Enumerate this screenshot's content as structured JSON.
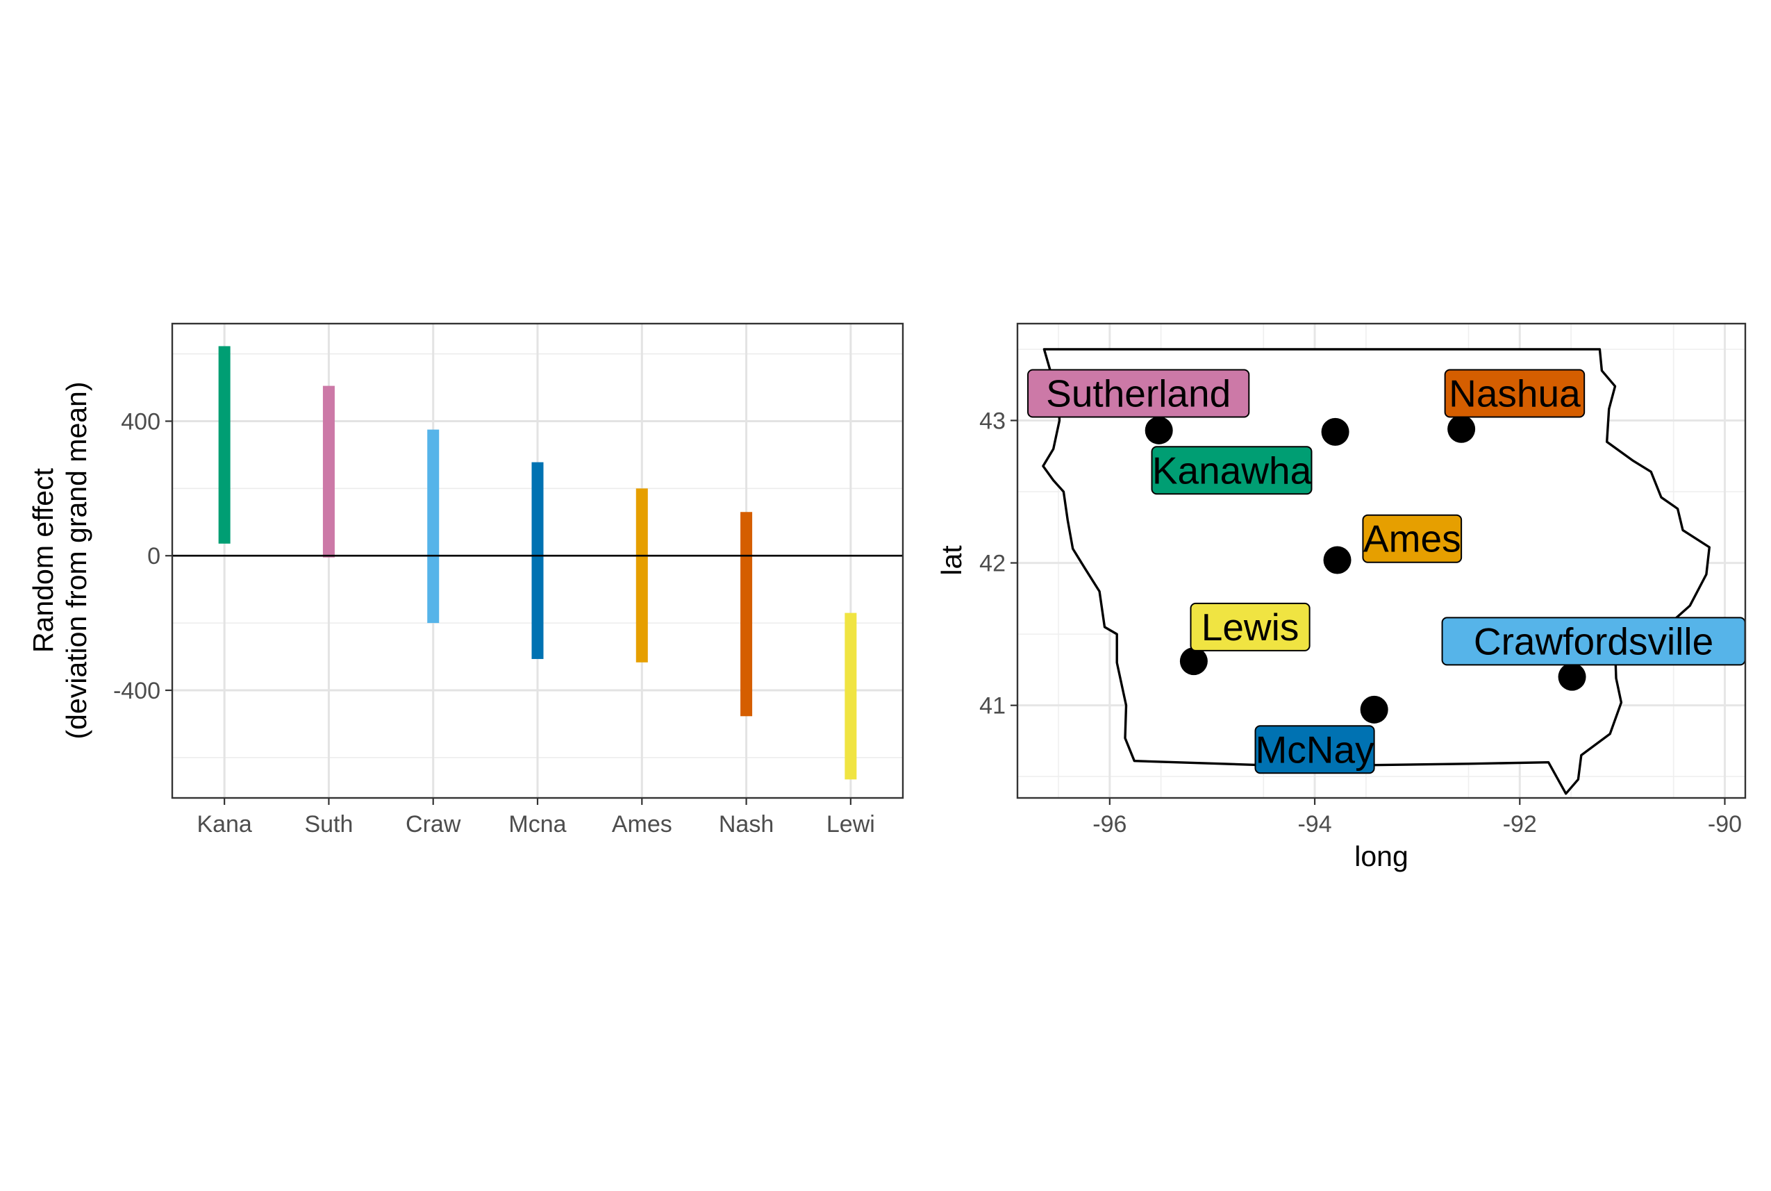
{
  "chart_data": [
    {
      "type": "bar",
      "subtype": "range",
      "categories": [
        "Kana",
        "Suth",
        "Craw",
        "Mcna",
        "Ames",
        "Nash",
        "Lewi"
      ],
      "series": [
        {
          "values": [
            [
              36,
              623
            ],
            [
              -5,
              505
            ],
            [
              -200,
              375
            ],
            [
              -307,
              278
            ],
            [
              -317,
              200
            ],
            [
              -477,
              130
            ],
            [
              -665,
              -170
            ]
          ]
        }
      ],
      "colors": [
        "#009E73",
        "#CC79A7",
        "#56B4E9",
        "#0072B2",
        "#E69F00",
        "#D55E00",
        "#F0E442"
      ],
      "title": "",
      "xlabel": "",
      "ylabel_lines": [
        "Random effect",
        "(deviation from grand mean)"
      ],
      "ylim": [
        -720,
        690
      ],
      "yticks": [
        -400,
        0,
        400
      ],
      "ytick_labels": [
        "-400",
        "0",
        "400"
      ],
      "reference_line": 0,
      "grid": true
    },
    {
      "type": "scatter",
      "subtype": "labeled-map",
      "title": "",
      "xlabel": "long",
      "ylabel": "lat",
      "xlim": [
        -96.9,
        -89.8
      ],
      "ylim": [
        40.35,
        43.68
      ],
      "xticks": [
        -96,
        -94,
        -92,
        -90
      ],
      "xtick_labels": [
        "-96",
        "-94",
        "-92",
        "-90"
      ],
      "yticks": [
        41,
        42,
        43
      ],
      "ytick_labels": [
        "41",
        "42",
        "43"
      ],
      "grid": true,
      "points": [
        {
          "name": "Sutherland",
          "x": -95.52,
          "y": 42.93,
          "color": "#CC79A7",
          "label_x": -95.72,
          "label_y": 43.19
        },
        {
          "name": "Kanawha",
          "x": -93.8,
          "y": 42.92,
          "color": "#009E73",
          "label_x": -94.81,
          "label_y": 42.65
        },
        {
          "name": "Nashua",
          "x": -92.57,
          "y": 42.94,
          "color": "#D55E00",
          "label_x": -92.05,
          "label_y": 43.19
        },
        {
          "name": "Ames",
          "x": -93.78,
          "y": 42.02,
          "color": "#E69F00",
          "label_x": -93.05,
          "label_y": 42.17
        },
        {
          "name": "Lewis",
          "x": -95.18,
          "y": 41.31,
          "color": "#F0E442",
          "label_x": -94.63,
          "label_y": 41.55
        },
        {
          "name": "Crawfordsville",
          "x": -91.49,
          "y": 41.2,
          "color": "#56B4E9",
          "label_x": -91.28,
          "label_y": 41.45
        },
        {
          "name": "McNay",
          "x": -93.42,
          "y": 40.97,
          "color": "#0072B2",
          "label_x": -94.0,
          "label_y": 40.69
        }
      ],
      "outline": [
        [
          -96.64,
          43.5
        ],
        [
          -91.22,
          43.5
        ],
        [
          -91.2,
          43.35
        ],
        [
          -91.07,
          43.24
        ],
        [
          -91.13,
          43.08
        ],
        [
          -91.15,
          42.85
        ],
        [
          -90.9,
          42.72
        ],
        [
          -90.72,
          42.64
        ],
        [
          -90.62,
          42.46
        ],
        [
          -90.46,
          42.38
        ],
        [
          -90.41,
          42.23
        ],
        [
          -90.15,
          42.11
        ],
        [
          -90.18,
          41.92
        ],
        [
          -90.34,
          41.7
        ],
        [
          -90.7,
          41.47
        ],
        [
          -91.07,
          41.4
        ],
        [
          -91.06,
          41.19
        ],
        [
          -91.01,
          41.02
        ],
        [
          -91.12,
          40.8
        ],
        [
          -91.4,
          40.65
        ],
        [
          -91.43,
          40.48
        ],
        [
          -91.55,
          40.38
        ],
        [
          -91.72,
          40.6
        ],
        [
          -92.5,
          40.59
        ],
        [
          -93.5,
          40.58
        ],
        [
          -94.5,
          40.58
        ],
        [
          -95.35,
          40.6
        ],
        [
          -95.76,
          40.61
        ],
        [
          -95.85,
          40.77
        ],
        [
          -95.84,
          41.0
        ],
        [
          -95.93,
          41.3
        ],
        [
          -95.93,
          41.5
        ],
        [
          -96.05,
          41.55
        ],
        [
          -96.1,
          41.8
        ],
        [
          -96.24,
          41.96
        ],
        [
          -96.36,
          42.1
        ],
        [
          -96.41,
          42.3
        ],
        [
          -96.45,
          42.5
        ],
        [
          -96.55,
          42.58
        ],
        [
          -96.65,
          42.68
        ],
        [
          -96.55,
          42.8
        ],
        [
          -96.49,
          43.0
        ],
        [
          -96.5,
          43.2
        ],
        [
          -96.56,
          43.3
        ],
        [
          -96.64,
          43.5
        ]
      ]
    }
  ]
}
